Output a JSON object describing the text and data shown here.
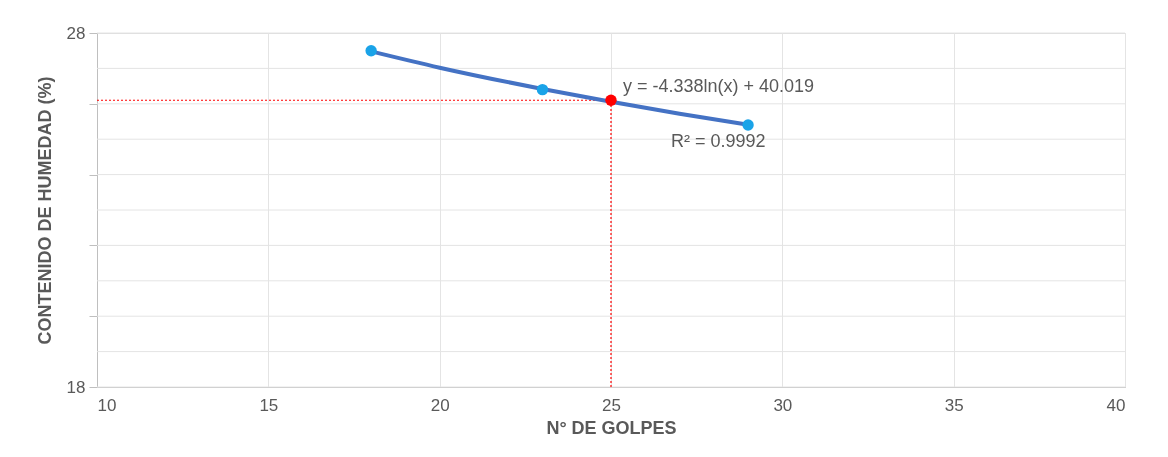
{
  "chart_data": {
    "type": "scatter",
    "xlabel": "N° DE GOLPES",
    "ylabel": "CONTENIDO DE HUMEDAD (%)",
    "xlim": [
      10,
      40
    ],
    "xticks": [
      10,
      15,
      20,
      25,
      30,
      35,
      40
    ],
    "ylim": [
      18,
      28
    ],
    "yticks": [
      18,
      {
        "value": 19,
        "label": null
      },
      {
        "value": 20,
        "label": null
      },
      {
        "value": 21,
        "label": null
      },
      {
        "value": 22,
        "label": null
      },
      {
        "value": 23,
        "label": null
      },
      {
        "value": 24,
        "label": null
      },
      {
        "value": 25,
        "label": null
      },
      {
        "value": 26,
        "label": null
      },
      {
        "value": 27,
        "label": null
      },
      28
    ],
    "grid": true,
    "legend": false,
    "series": [
      {
        "type": "line",
        "color": "#4472c4",
        "marker": "none",
        "x": [
          18,
          20,
          23,
          25,
          27,
          29
        ],
        "values": [
          27.48,
          27.02,
          26.42,
          26.06,
          25.72,
          25.41
        ]
      },
      {
        "color": "#1aa3e8",
        "marker": "circle",
        "x": [
          18,
          23,
          29
        ],
        "values": [
          27.5,
          26.4,
          25.4
        ]
      },
      {
        "color": "#ff0000",
        "marker": "circle",
        "x": [
          25
        ],
        "values": [
          26.1
        ]
      }
    ],
    "ref_lines": [
      {
        "axis": "y",
        "value": 26.1,
        "color": "#ff0000",
        "line_style": "dotted"
      },
      {
        "axis": "x",
        "value": 25,
        "color": "#ff0000",
        "line_style": "dotted"
      }
    ],
    "annotations": [
      "y = -4.338ln(x) + 40.019",
      "R² = 0.9992"
    ]
  }
}
